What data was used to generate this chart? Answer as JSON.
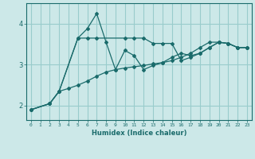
{
  "xlabel": "Humidex (Indice chaleur)",
  "bg_color": "#cce8e8",
  "grid_color": "#99cccc",
  "line_color": "#1a6b6b",
  "x_ticks": [
    0,
    1,
    2,
    3,
    4,
    5,
    6,
    7,
    8,
    9,
    10,
    11,
    12,
    13,
    14,
    15,
    16,
    17,
    18,
    19,
    20,
    21,
    22,
    23
  ],
  "y_ticks": [
    2,
    3,
    4
  ],
  "ylim": [
    1.65,
    4.5
  ],
  "xlim": [
    -0.5,
    23.5
  ],
  "line1_x": [
    0,
    2,
    3,
    5,
    6,
    7,
    8,
    9,
    10,
    11,
    12,
    13,
    14,
    15,
    16,
    17,
    18,
    19,
    20,
    21,
    22,
    23
  ],
  "line1_y": [
    1.9,
    2.05,
    2.35,
    3.65,
    3.88,
    4.25,
    3.55,
    2.88,
    3.35,
    3.22,
    2.88,
    2.98,
    3.05,
    3.18,
    3.28,
    3.22,
    3.28,
    3.42,
    3.55,
    3.52,
    3.42,
    3.42
  ],
  "line2_x": [
    0,
    2,
    3,
    5,
    6,
    7,
    10,
    11,
    12,
    13,
    14,
    15,
    16,
    17,
    18,
    19,
    20,
    21,
    22,
    23
  ],
  "line2_y": [
    1.9,
    2.05,
    2.35,
    3.65,
    3.65,
    3.65,
    3.65,
    3.65,
    3.65,
    3.52,
    3.52,
    3.52,
    3.1,
    3.18,
    3.28,
    3.42,
    3.55,
    3.52,
    3.42,
    3.42
  ],
  "line3_x": [
    0,
    2,
    3,
    4,
    5,
    6,
    7,
    8,
    9,
    10,
    11,
    12,
    13,
    14,
    15,
    16,
    17,
    18,
    19,
    20,
    21,
    22,
    23
  ],
  "line3_y": [
    1.9,
    2.05,
    2.35,
    2.42,
    2.5,
    2.6,
    2.72,
    2.82,
    2.88,
    2.92,
    2.95,
    2.98,
    3.02,
    3.05,
    3.1,
    3.18,
    3.28,
    3.42,
    3.55,
    3.55,
    3.52,
    3.42,
    3.42
  ]
}
